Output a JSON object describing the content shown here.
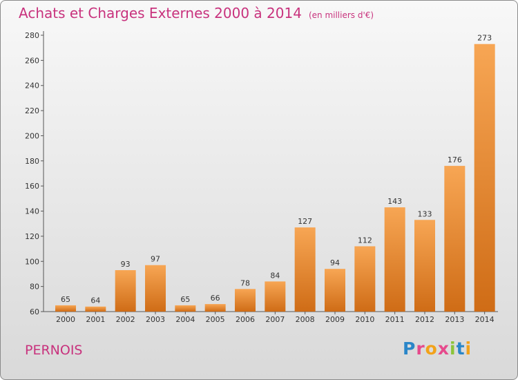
{
  "title": "Achats et Charges Externes 2000 à 2014",
  "unit": "(en milliers d'€)",
  "town": "PERNOIS",
  "logo": [
    "P",
    "r",
    "o",
    "x",
    "i",
    "t",
    "i"
  ],
  "colors": {
    "title": "#c8327d",
    "bar_light": "#f7a654",
    "bar_dark": "#cf6c16"
  },
  "chart_data": {
    "type": "bar",
    "categories": [
      "2000",
      "2001",
      "2002",
      "2003",
      "2004",
      "2005",
      "2006",
      "2007",
      "2008",
      "2009",
      "2010",
      "2011",
      "2012",
      "2013",
      "2014"
    ],
    "values": [
      65,
      64,
      93,
      97,
      65,
      66,
      78,
      84,
      127,
      94,
      112,
      143,
      133,
      176,
      273
    ],
    "ylim": [
      60,
      280
    ],
    "yticks": [
      60,
      80,
      100,
      120,
      140,
      160,
      180,
      200,
      220,
      240,
      260,
      280
    ],
    "grid": false,
    "data_labels": true
  }
}
